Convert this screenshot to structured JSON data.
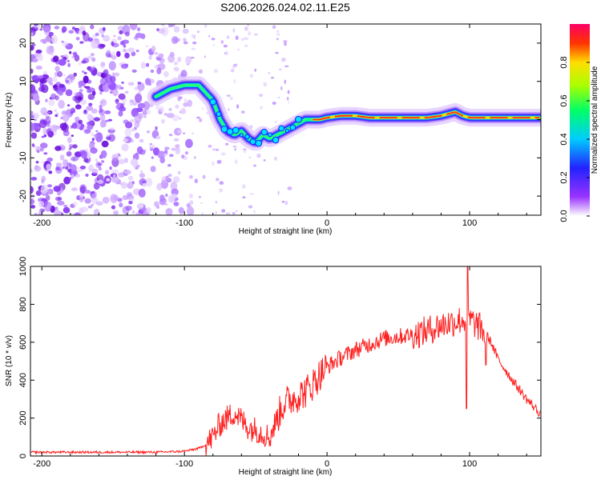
{
  "title": "S206.2026.024.02.11.E25",
  "chart_data": [
    {
      "type": "heatmap",
      "title": "S206.2026.024.02.11.E25",
      "xlabel": "Height of straight line (km)",
      "ylabel": "Frequency (Hz)",
      "xlim": [
        -208,
        150
      ],
      "ylim": [
        -25,
        25
      ],
      "xticks": [
        -200,
        -100,
        0,
        100
      ],
      "yticks": [
        -20,
        -10,
        0,
        10,
        20
      ],
      "colorbar": {
        "label": "Normalized spectral amplitude",
        "range": [
          0,
          1
        ],
        "ticks": [
          0.0,
          0.2,
          0.4,
          0.6,
          0.8
        ]
      },
      "ridge": {
        "x": [
          -120,
          -110,
          -100,
          -90,
          -80,
          -75,
          -70,
          -65,
          -60,
          -55,
          -50,
          -45,
          -40,
          -35,
          -30,
          -25,
          -20,
          -15,
          -10,
          -5,
          0,
          10,
          20,
          30,
          40,
          50,
          60,
          70,
          80,
          85,
          90,
          95,
          100,
          105,
          110,
          120,
          130,
          140,
          150
        ],
        "y": [
          6,
          8,
          9,
          9,
          5,
          0,
          -3,
          -4,
          -3,
          -5,
          -6,
          -4,
          -5,
          -4,
          -3,
          -2,
          -1,
          0,
          0,
          0,
          0.5,
          1,
          1,
          0.5,
          0.5,
          0.5,
          0.5,
          0.5,
          1,
          1.5,
          2,
          1,
          0.5,
          0.5,
          0.5,
          0.5,
          0.5,
          0.5,
          0.5
        ]
      }
    },
    {
      "type": "line",
      "xlabel": "Height of straight line (km)",
      "ylabel": "SNR (10 * v/v)",
      "xlim": [
        -208,
        150
      ],
      "ylim": [
        0,
        1000
      ],
      "xticks": [
        -200,
        -100,
        0,
        100
      ],
      "yticks": [
        0,
        200,
        400,
        600,
        800,
        1000
      ],
      "series": [
        {
          "name": "SNR",
          "color": "#ff2020",
          "x": [
            -208,
            -180,
            -150,
            -120,
            -100,
            -90,
            -85,
            -80,
            -75,
            -70,
            -65,
            -60,
            -55,
            -50,
            -45,
            -40,
            -35,
            -30,
            -25,
            -20,
            -15,
            -10,
            -5,
            0,
            10,
            20,
            30,
            40,
            50,
            60,
            70,
            80,
            85,
            90,
            95,
            100,
            105,
            110,
            115,
            120,
            130,
            140,
            150
          ],
          "y": [
            20,
            20,
            20,
            20,
            25,
            40,
            60,
            100,
            170,
            200,
            230,
            190,
            150,
            140,
            120,
            100,
            200,
            280,
            300,
            320,
            340,
            380,
            430,
            470,
            520,
            560,
            590,
            620,
            630,
            640,
            660,
            690,
            700,
            710,
            720,
            720,
            690,
            660,
            600,
            510,
            400,
            300,
            220
          ]
        }
      ]
    }
  ]
}
